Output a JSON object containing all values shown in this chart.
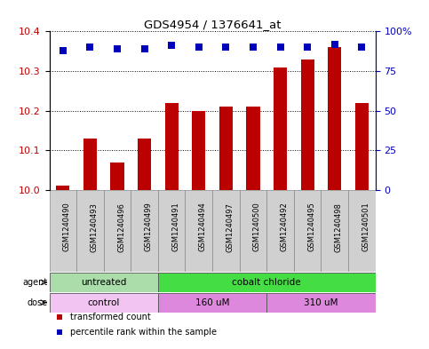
{
  "title": "GDS4954 / 1376641_at",
  "samples": [
    "GSM1240490",
    "GSM1240493",
    "GSM1240496",
    "GSM1240499",
    "GSM1240491",
    "GSM1240494",
    "GSM1240497",
    "GSM1240500",
    "GSM1240492",
    "GSM1240495",
    "GSM1240498",
    "GSM1240501"
  ],
  "transformed_counts": [
    10.01,
    10.13,
    10.07,
    10.13,
    10.22,
    10.2,
    10.21,
    10.21,
    10.31,
    10.33,
    10.36,
    10.22
  ],
  "percentile_ranks": [
    88,
    90,
    89,
    89,
    91,
    90,
    90,
    90,
    90,
    90,
    92,
    90
  ],
  "ylim_left": [
    10.0,
    10.4
  ],
  "ylim_right": [
    0,
    100
  ],
  "yticks_left": [
    10.0,
    10.1,
    10.2,
    10.3,
    10.4
  ],
  "yticks_right": [
    0,
    25,
    50,
    75,
    100
  ],
  "ytick_labels_right": [
    "0",
    "25",
    "50",
    "75",
    "100%"
  ],
  "bar_color": "#bb0000",
  "dot_color": "#0000bb",
  "agent_groups": [
    {
      "label": "untreated",
      "start": 0,
      "end": 4,
      "color": "#aaddaa"
    },
    {
      "label": "cobalt chloride",
      "start": 4,
      "end": 12,
      "color": "#44dd44"
    }
  ],
  "dose_groups": [
    {
      "label": "control",
      "start": 0,
      "end": 4,
      "color": "#f0b8f0"
    },
    {
      "label": "160 uM",
      "start": 4,
      "end": 8,
      "color": "#dd88dd"
    },
    {
      "label": "310 uM",
      "start": 8,
      "end": 12,
      "color": "#dd88dd"
    }
  ],
  "legend_items": [
    {
      "label": "transformed count",
      "color": "#bb0000",
      "marker": "s"
    },
    {
      "label": "percentile rank within the sample",
      "color": "#0000bb",
      "marker": "s"
    }
  ],
  "background_color": "#ffffff",
  "grid_color": "#000000",
  "bar_width": 0.5,
  "dot_size": 30,
  "xticklabel_bg": "#d0d0d0"
}
